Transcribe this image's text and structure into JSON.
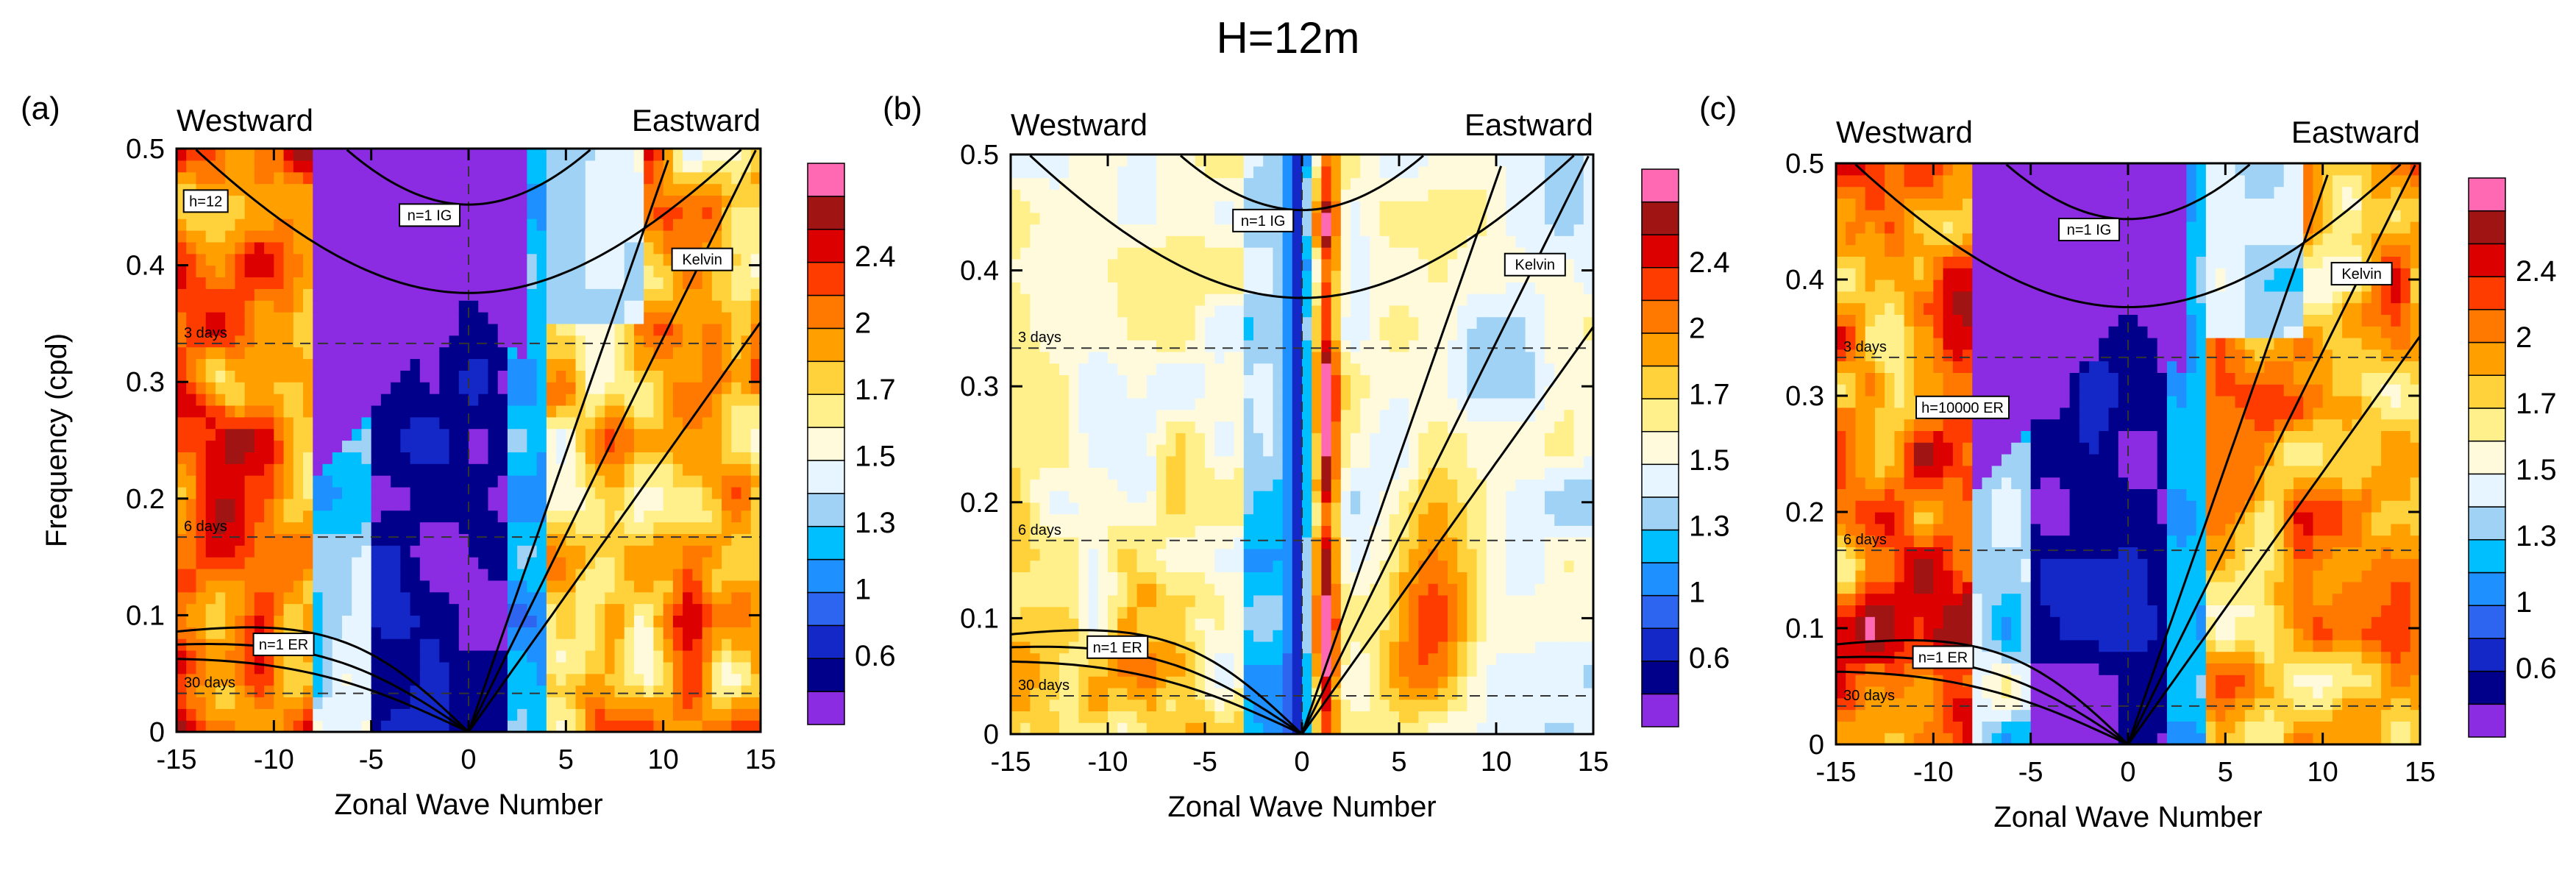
{
  "figure": {
    "title": "H=12m"
  },
  "chart_data": [
    {
      "type": "heatmap",
      "panel": "(a)",
      "xlabel": "Zonal Wave Number",
      "ylabel": "Frequency (cpd)",
      "xlim": [
        -15,
        15
      ],
      "ylim": [
        0,
        0.5
      ],
      "xticks": [
        "-15",
        "-10",
        "-5",
        "0",
        "5",
        "10",
        "15"
      ],
      "yticks": [
        "0",
        "0.1",
        "0.2",
        "0.3",
        "0.4",
        "0.5"
      ],
      "direction_labels": [
        "Westward",
        "Eastward"
      ],
      "period_lines": [
        {
          "label": "3 days",
          "freq": 0.333
        },
        {
          "label": "6 days",
          "freq": 0.167
        },
        {
          "label": "30 days",
          "freq": 0.033
        }
      ],
      "curve_labels": [
        "h=12",
        "n=1 IG",
        "Kelvin",
        "n=1 ER"
      ],
      "colorbar_labels": [
        "2.4",
        "2",
        "1.7",
        "1.5",
        "1.3",
        "1",
        "0.6"
      ]
    },
    {
      "type": "heatmap",
      "panel": "(b)",
      "xlabel": "Zonal Wave Number",
      "ylabel": "",
      "xlim": [
        -15,
        15
      ],
      "ylim": [
        0,
        0.5
      ],
      "xticks": [
        "-15",
        "-10",
        "-5",
        "0",
        "5",
        "10",
        "15"
      ],
      "yticks": [
        "0",
        "0.1",
        "0.2",
        "0.3",
        "0.4",
        "0.5"
      ],
      "direction_labels": [
        "Westward",
        "Eastward"
      ],
      "period_lines": [
        {
          "label": "3 days",
          "freq": 0.333
        },
        {
          "label": "6 days",
          "freq": 0.167
        },
        {
          "label": "30 days",
          "freq": 0.033
        }
      ],
      "curve_labels": [
        "n=1 IG",
        "Kelvin",
        "n=1 ER"
      ],
      "colorbar_labels": [
        "2.4",
        "2",
        "1.7",
        "1.5",
        "1.3",
        "1",
        "0.6"
      ]
    },
    {
      "type": "heatmap",
      "panel": "(c)",
      "xlabel": "Zonal Wave Number",
      "ylabel": "",
      "xlim": [
        -15,
        15
      ],
      "ylim": [
        0,
        0.5
      ],
      "xticks": [
        "-15",
        "-10",
        "-5",
        "0",
        "5",
        "10",
        "15"
      ],
      "yticks": [
        "0",
        "0.1",
        "0.2",
        "0.3",
        "0.4",
        "0.5"
      ],
      "direction_labels": [
        "Westward",
        "Eastward"
      ],
      "period_lines": [
        {
          "label": "3 days",
          "freq": 0.333
        },
        {
          "label": "6 days",
          "freq": 0.167
        },
        {
          "label": "30 days",
          "freq": 0.033
        }
      ],
      "curve_labels": [
        "n=1 IG",
        "h=10000 ER",
        "Kelvin",
        "n=1 ER"
      ],
      "colorbar_labels": [
        "2.4",
        "2",
        "1.7",
        "1.5",
        "1.3",
        "1",
        "0.6"
      ]
    }
  ],
  "colorscale": [
    "#8b2be2",
    "#00008b",
    "#1428c8",
    "#2d64f0",
    "#1e90ff",
    "#00bfff",
    "#a0d2f5",
    "#e6f5ff",
    "#fffadc",
    "#fff08c",
    "#ffd23c",
    "#ffa000",
    "#ff7800",
    "#ff3c00",
    "#dc0000",
    "#a01414",
    "#ff69b4"
  ]
}
